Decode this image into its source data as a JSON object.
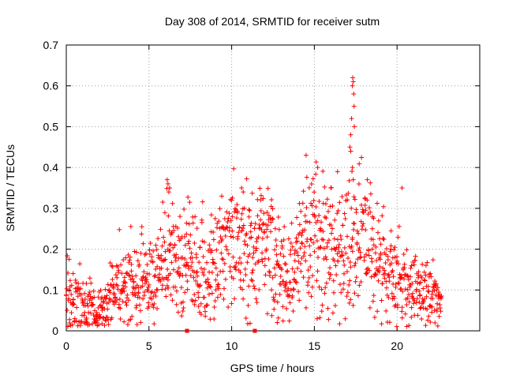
{
  "chart_data": {
    "type": "scatter",
    "title": "Day 308 of 2014, SRMTID for receiver sutm",
    "xlabel": "GPS time / hours",
    "ylabel": "SRMTID / TECUs",
    "xlim": [
      0,
      25
    ],
    "ylim": [
      0,
      0.7
    ],
    "xticks": [
      0,
      5,
      10,
      15,
      20
    ],
    "yticks": [
      0,
      0.1,
      0.2,
      0.3,
      0.4,
      0.5,
      0.6,
      0.7
    ],
    "grid": true,
    "marker": "+",
    "color": "#ff0000",
    "trend": [
      [
        0.0,
        0.1
      ],
      [
        0.5,
        0.08
      ],
      [
        1.0,
        0.065
      ],
      [
        1.5,
        0.06
      ],
      [
        2.0,
        0.055
      ],
      [
        2.4,
        0.05
      ],
      [
        2.8,
        0.09
      ],
      [
        3.2,
        0.12
      ],
      [
        3.6,
        0.125
      ],
      [
        4.0,
        0.12
      ],
      [
        4.5,
        0.12
      ],
      [
        5.0,
        0.11
      ],
      [
        5.5,
        0.12
      ],
      [
        5.9,
        0.17
      ],
      [
        6.2,
        0.2
      ],
      [
        6.6,
        0.19
      ],
      [
        7.0,
        0.17
      ],
      [
        7.5,
        0.16
      ],
      [
        8.0,
        0.15
      ],
      [
        8.5,
        0.15
      ],
      [
        9.0,
        0.16
      ],
      [
        9.5,
        0.2
      ],
      [
        10.0,
        0.22
      ],
      [
        10.5,
        0.21
      ],
      [
        11.0,
        0.19
      ],
      [
        11.5,
        0.19
      ],
      [
        12.0,
        0.21
      ],
      [
        12.5,
        0.18
      ],
      [
        13.0,
        0.15
      ],
      [
        13.5,
        0.13
      ],
      [
        14.0,
        0.19
      ],
      [
        14.5,
        0.23
      ],
      [
        15.0,
        0.24
      ],
      [
        15.5,
        0.22
      ],
      [
        16.0,
        0.2
      ],
      [
        16.5,
        0.19
      ],
      [
        17.0,
        0.21
      ],
      [
        17.5,
        0.24
      ],
      [
        18.0,
        0.22
      ],
      [
        18.5,
        0.2
      ],
      [
        19.0,
        0.16
      ],
      [
        19.5,
        0.15
      ],
      [
        20.0,
        0.14
      ],
      [
        20.5,
        0.12
      ],
      [
        21.0,
        0.09
      ],
      [
        21.5,
        0.1
      ],
      [
        22.0,
        0.09
      ],
      [
        22.4,
        0.06
      ],
      [
        22.7,
        0.05
      ]
    ],
    "spikes": [
      [
        6.1,
        0.37
      ],
      [
        6.15,
        0.36
      ],
      [
        6.2,
        0.34
      ],
      [
        6.25,
        0.35
      ],
      [
        9.4,
        0.33
      ],
      [
        10.0,
        0.32
      ],
      [
        10.6,
        0.35
      ],
      [
        10.7,
        0.34
      ],
      [
        14.5,
        0.43
      ],
      [
        15.2,
        0.4
      ],
      [
        16.0,
        0.35
      ],
      [
        16.4,
        0.39
      ],
      [
        17.15,
        0.45
      ],
      [
        17.2,
        0.48
      ],
      [
        17.25,
        0.52
      ],
      [
        17.3,
        0.6
      ],
      [
        17.32,
        0.62
      ],
      [
        17.35,
        0.61
      ],
      [
        17.38,
        0.58
      ],
      [
        17.4,
        0.55
      ],
      [
        17.42,
        0.5
      ],
      [
        17.2,
        0.44
      ],
      [
        17.3,
        0.4
      ],
      [
        17.35,
        0.37
      ],
      [
        18.2,
        0.37
      ],
      [
        20.3,
        0.35
      ]
    ],
    "baseline_points": [
      [
        7.3,
        0.0
      ],
      [
        11.4,
        0.0
      ]
    ]
  }
}
